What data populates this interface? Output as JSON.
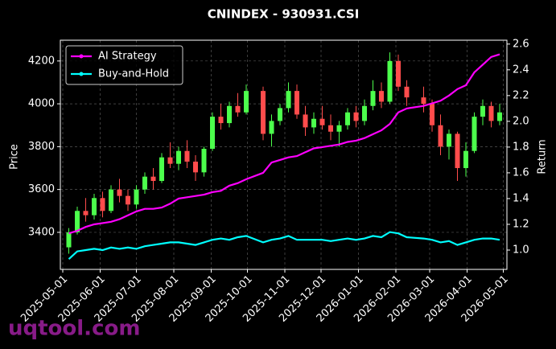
{
  "chart_data": {
    "type": "candlestick",
    "title": "CNINDEX - 930931.CSI",
    "ylabel": "Price",
    "y2label": "Return",
    "watermark": "uqtool.com",
    "up_color": "#4cff4c",
    "down_color": "#ff4c4c",
    "grid": true,
    "legend": "upper-left",
    "x": [
      "2025-05-06",
      "2025-05-13",
      "2025-05-20",
      "2025-05-27",
      "2025-06-03",
      "2025-06-10",
      "2025-06-17",
      "2025-06-24",
      "2025-07-01",
      "2025-07-08",
      "2025-07-15",
      "2025-07-22",
      "2025-07-29",
      "2025-08-05",
      "2025-08-12",
      "2025-08-19",
      "2025-08-26",
      "2025-09-02",
      "2025-09-09",
      "2025-09-16",
      "2025-09-23",
      "2025-09-30",
      "2025-10-14",
      "2025-10-21",
      "2025-10-28",
      "2025-11-04",
      "2025-11-11",
      "2025-11-18",
      "2025-11-25",
      "2025-12-02",
      "2025-12-09",
      "2025-12-16",
      "2025-12-23",
      "2025-12-30",
      "2026-01-06",
      "2026-01-13",
      "2026-01-20",
      "2026-01-27",
      "2026-02-03",
      "2026-02-10",
      "2026-02-24",
      "2026-03-03",
      "2026-03-10",
      "2026-03-17",
      "2026-03-24",
      "2026-03-31",
      "2026-04-07",
      "2026-04-14",
      "2026-04-21",
      "2026-04-28"
    ],
    "open": [
      3330,
      3400,
      3500,
      3480,
      3560,
      3500,
      3600,
      3570,
      3530,
      3600,
      3660,
      3640,
      3750,
      3720,
      3780,
      3730,
      3680,
      3790,
      3940,
      3910,
      3990,
      3960,
      4060,
      3860,
      3920,
      3980,
      4060,
      3950,
      3890,
      3930,
      3900,
      3870,
      3900,
      3960,
      3920,
      3990,
      4060,
      4010,
      4200,
      4080,
      4030,
      4000,
      3900,
      3800,
      3860,
      3700,
      3780,
      3940,
      3990,
      3920
    ],
    "high": [
      3420,
      3520,
      3560,
      3580,
      3590,
      3620,
      3650,
      3600,
      3620,
      3680,
      3700,
      3770,
      3820,
      3800,
      3830,
      3760,
      3800,
      3960,
      4000,
      4010,
      4050,
      4090,
      4080,
      3950,
      4000,
      4100,
      4090,
      3990,
      3960,
      3990,
      3950,
      3920,
      3980,
      3990,
      4020,
      4110,
      4100,
      4240,
      4230,
      4110,
      4080,
      4020,
      3950,
      3880,
      3870,
      3820,
      3960,
      4020,
      4010,
      4000
    ],
    "low": [
      3300,
      3390,
      3450,
      3460,
      3470,
      3490,
      3540,
      3500,
      3510,
      3580,
      3600,
      3630,
      3700,
      3690,
      3700,
      3640,
      3660,
      3780,
      3880,
      3890,
      3940,
      3950,
      3830,
      3800,
      3900,
      3960,
      3930,
      3850,
      3860,
      3880,
      3830,
      3800,
      3880,
      3890,
      3900,
      3970,
      3980,
      4000,
      4060,
      3990,
      3960,
      3870,
      3760,
      3740,
      3640,
      3660,
      3770,
      3900,
      3890,
      3900
    ],
    "close": [
      3400,
      3500,
      3480,
      3560,
      3500,
      3600,
      3570,
      3530,
      3600,
      3660,
      3640,
      3750,
      3720,
      3780,
      3730,
      3680,
      3790,
      3940,
      3910,
      3990,
      3960,
      4060,
      3860,
      3920,
      3980,
      4060,
      3950,
      3890,
      3930,
      3900,
      3870,
      3900,
      3960,
      3920,
      3990,
      4060,
      4010,
      4200,
      4080,
      4030,
      4000,
      3900,
      3800,
      3860,
      3700,
      3780,
      3940,
      3990,
      3920,
      3960
    ],
    "series": [
      {
        "name": "AI Strategy",
        "color": "#ff00ff",
        "axis": "y2",
        "values": [
          1.13,
          1.15,
          1.18,
          1.2,
          1.21,
          1.22,
          1.24,
          1.27,
          1.3,
          1.32,
          1.32,
          1.33,
          1.36,
          1.4,
          1.41,
          1.42,
          1.43,
          1.45,
          1.46,
          1.5,
          1.52,
          1.55,
          1.6,
          1.68,
          1.7,
          1.72,
          1.73,
          1.76,
          1.79,
          1.8,
          1.81,
          1.82,
          1.84,
          1.85,
          1.87,
          1.9,
          1.93,
          1.98,
          2.07,
          2.1,
          2.12,
          2.14,
          2.16,
          2.2,
          2.25,
          2.28,
          2.38,
          2.44,
          2.5,
          2.52
        ]
      },
      {
        "name": "Buy-and-Hold",
        "color": "#00ffff",
        "axis": "y2",
        "values": [
          0.93,
          0.99,
          1.0,
          1.01,
          1.0,
          1.02,
          1.01,
          1.02,
          1.01,
          1.03,
          1.04,
          1.05,
          1.06,
          1.06,
          1.05,
          1.04,
          1.06,
          1.08,
          1.09,
          1.08,
          1.1,
          1.11,
          1.06,
          1.08,
          1.09,
          1.11,
          1.08,
          1.08,
          1.08,
          1.08,
          1.07,
          1.08,
          1.09,
          1.08,
          1.09,
          1.11,
          1.1,
          1.14,
          1.13,
          1.1,
          1.09,
          1.08,
          1.06,
          1.07,
          1.04,
          1.06,
          1.08,
          1.09,
          1.09,
          1.08
        ]
      }
    ],
    "xlim": [
      "2025-04-29",
      "2026-05-04"
    ],
    "xticks": [
      "2025-05-01",
      "2025-06-01",
      "2025-07-01",
      "2025-08-01",
      "2025-09-01",
      "2025-10-01",
      "2025-11-01",
      "2025-12-01",
      "2026-01-01",
      "2026-02-01",
      "2026-03-01",
      "2026-04-01",
      "2026-05-01"
    ],
    "ylim": [
      3227,
      4297
    ],
    "yticks": [
      3400,
      3600,
      3800,
      4000,
      4200
    ],
    "y2lim": [
      0.85,
      2.63
    ],
    "y2ticks": [
      {
        "value": 1.0,
        "label": "1.0"
      },
      1.2,
      1.4,
      1.6,
      1.8,
      {
        "value": 2.0,
        "label": "2.0"
      },
      2.2,
      2.4,
      2.6
    ]
  }
}
